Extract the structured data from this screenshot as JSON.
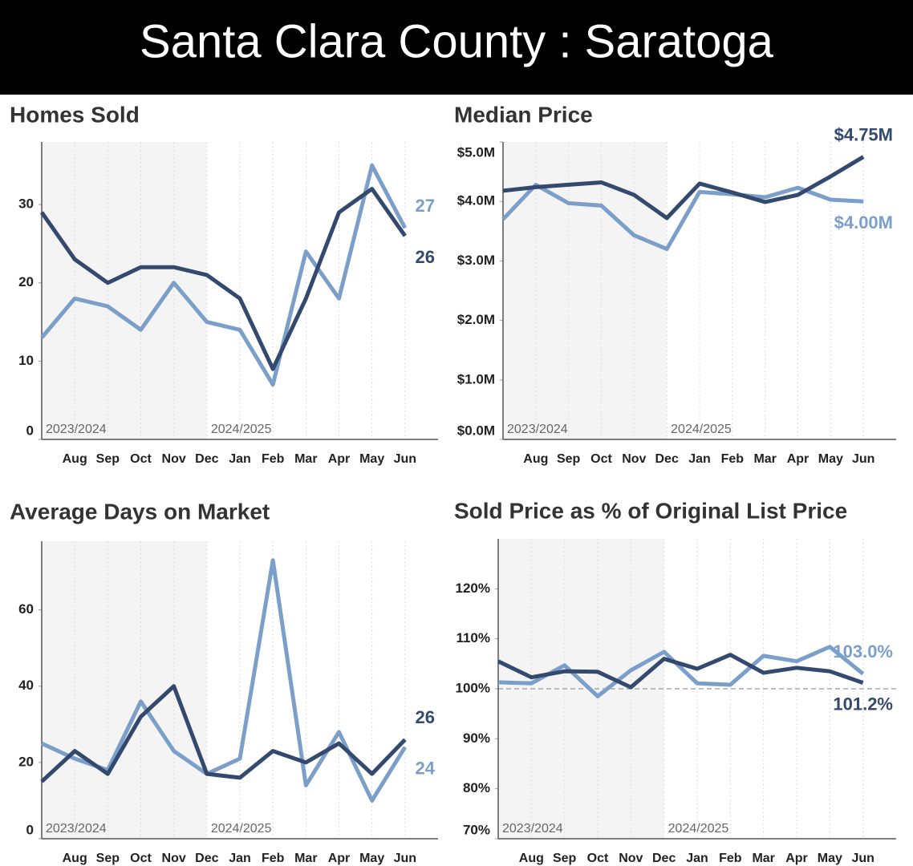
{
  "header": {
    "title": "Santa Clara County : Saratoga"
  },
  "chart_data": [
    {
      "type": "line",
      "title": "Homes Sold",
      "categories": [
        null,
        "Aug",
        "Sep",
        "Oct",
        "Nov",
        "Dec",
        "Jan",
        "Feb",
        "Mar",
        "Apr",
        "May",
        "Jun"
      ],
      "series": [
        {
          "color": "#7b9fc9",
          "values": [
            13,
            18,
            17,
            14,
            20,
            15,
            14,
            7,
            24,
            18,
            35,
            27
          ]
        },
        {
          "color": "#34496e",
          "values": [
            29,
            23,
            20,
            22,
            22,
            21,
            18,
            9,
            18,
            29,
            32,
            26
          ]
        }
      ],
      "ylim": [
        0,
        38
      ],
      "yticks": [
        0,
        10,
        20,
        30
      ],
      "grid": "vertical",
      "periods": [
        {
          "label": "2023/2024",
          "shaded": true
        },
        {
          "label": "2024/2025",
          "shaded": false,
          "start": "Dec"
        }
      ]
    },
    {
      "type": "line",
      "title": "Median Price",
      "categories": [
        null,
        "Aug",
        "Sep",
        "Oct",
        "Nov",
        "Dec",
        "Jan",
        "Feb",
        "Mar",
        "Apr",
        "May",
        "Jun"
      ],
      "series": [
        {
          "color": "#7b9fc9",
          "values": [
            3700000,
            4280000,
            3970000,
            3930000,
            3430000,
            3200000,
            4160000,
            4120000,
            4070000,
            4230000,
            4030000,
            4000000
          ],
          "value_labels": [
            null,
            null,
            null,
            null,
            null,
            null,
            null,
            null,
            null,
            null,
            null,
            "$4.00M"
          ]
        },
        {
          "color": "#34496e",
          "values": [
            4180000,
            4240000,
            4280000,
            4320000,
            4110000,
            3720000,
            4300000,
            4150000,
            3990000,
            4110000,
            4420000,
            4750000
          ],
          "value_labels": [
            null,
            null,
            null,
            null,
            null,
            null,
            null,
            null,
            null,
            null,
            null,
            "$4.75M"
          ]
        }
      ],
      "ylim": [
        0,
        5000000
      ],
      "yticks": [
        {
          "value": 0,
          "label": "$0.0M"
        },
        {
          "value": 1000000,
          "label": "$1.0M"
        },
        {
          "value": 2000000,
          "label": "$2.0M"
        },
        {
          "value": 3000000,
          "label": "$3.0M"
        },
        {
          "value": 4000000,
          "label": "$4.0M"
        },
        {
          "value": 5000000,
          "label": "$5.0M"
        }
      ],
      "grid": "vertical",
      "periods": [
        {
          "label": "2023/2024",
          "shaded": true
        },
        {
          "label": "2024/2025",
          "shaded": false,
          "start": "Dec"
        }
      ]
    },
    {
      "type": "line",
      "title": "Average Days on Market",
      "categories": [
        null,
        "Aug",
        "Sep",
        "Oct",
        "Nov",
        "Dec",
        "Jan",
        "Feb",
        "Mar",
        "Apr",
        "May",
        "Jun"
      ],
      "series": [
        {
          "color": "#7b9fc9",
          "values": [
            25,
            21,
            18,
            36,
            23,
            17,
            21,
            73,
            14,
            28,
            10,
            24
          ]
        },
        {
          "color": "#34496e",
          "values": [
            15,
            23,
            17,
            32,
            40,
            17,
            16,
            23,
            20,
            25,
            17,
            26
          ]
        }
      ],
      "ylim": [
        0,
        78
      ],
      "yticks": [
        0,
        20,
        40,
        60
      ],
      "grid": "vertical",
      "periods": [
        {
          "label": "2023/2024",
          "shaded": true
        },
        {
          "label": "2024/2025",
          "shaded": false,
          "start": "Dec"
        }
      ]
    },
    {
      "type": "line",
      "title": "Sold Price as % of Original List Price",
      "categories": [
        null,
        "Aug",
        "Sep",
        "Oct",
        "Nov",
        "Dec",
        "Jan",
        "Feb",
        "Mar",
        "Apr",
        "May",
        "Jun"
      ],
      "series": [
        {
          "color": "#7b9fc9",
          "values": [
            101.3,
            101.1,
            104.7,
            98.5,
            103.7,
            107.4,
            101.1,
            100.8,
            106.6,
            105.5,
            108.4,
            103.0
          ],
          "value_labels": [
            null,
            null,
            null,
            null,
            null,
            null,
            null,
            null,
            null,
            null,
            null,
            "103.0%"
          ]
        },
        {
          "color": "#34496e",
          "values": [
            105.5,
            102.3,
            103.5,
            103.4,
            100.3,
            106,
            104,
            106.8,
            103.2,
            104.2,
            103.5,
            101.2
          ],
          "value_labels": [
            null,
            null,
            null,
            null,
            null,
            null,
            null,
            null,
            null,
            null,
            null,
            "101.2%"
          ]
        }
      ],
      "ylim": [
        70,
        130
      ],
      "yticks": [
        {
          "value": 70,
          "label": "70%"
        },
        {
          "value": 80,
          "label": "80%"
        },
        {
          "value": 90,
          "label": "90%"
        },
        {
          "value": 100,
          "label": "100%"
        },
        {
          "value": 110,
          "label": "110%"
        },
        {
          "value": 120,
          "label": "120%"
        }
      ],
      "reference_line": 100,
      "grid": "vertical",
      "periods": [
        {
          "label": "2023/2024",
          "shaded": true
        },
        {
          "label": "2024/2025",
          "shaded": false,
          "start": "Dec"
        }
      ]
    }
  ]
}
